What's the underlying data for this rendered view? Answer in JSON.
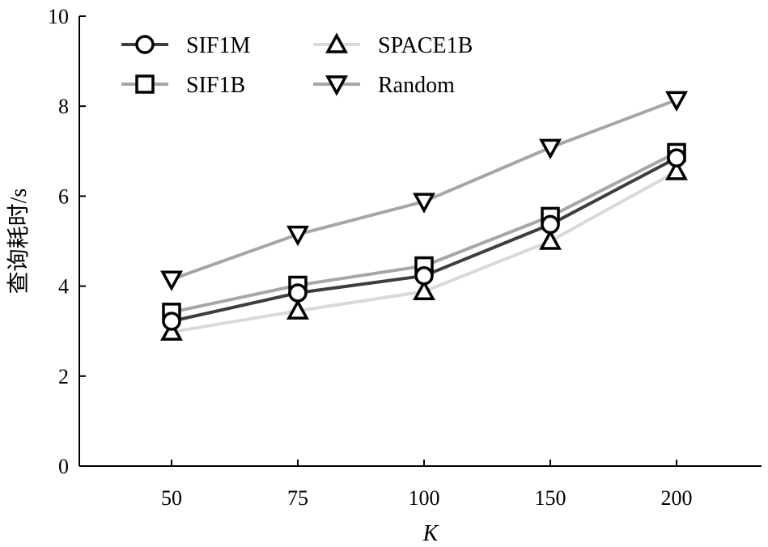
{
  "chart_data": {
    "type": "line",
    "xlabel": "K",
    "ylabel": "查询耗时/s",
    "categories": [
      "50",
      "75",
      "100",
      "150",
      "200"
    ],
    "ylim": [
      0,
      10
    ],
    "yticks": [
      "0",
      "2",
      "4",
      "6",
      "8",
      "10"
    ],
    "grid": false,
    "legend_position": "top-left",
    "series": [
      {
        "name": "SIF1M",
        "marker": "circle",
        "color": "#3d3d3d",
        "values": [
          3.22,
          3.85,
          4.23,
          5.37,
          6.85
        ]
      },
      {
        "name": "SIF1B",
        "marker": "square",
        "color": "#a6a6a6",
        "values": [
          3.42,
          4.02,
          4.45,
          5.55,
          6.97
        ]
      },
      {
        "name": "SPACE1B",
        "marker": "triangle-up",
        "color": "#d9d9d9",
        "values": [
          2.98,
          3.45,
          3.88,
          5.0,
          6.55
        ]
      },
      {
        "name": "Random",
        "marker": "triangle-down",
        "color": "#a6a6a6",
        "values": [
          4.15,
          5.15,
          5.88,
          7.08,
          8.14
        ]
      }
    ]
  }
}
